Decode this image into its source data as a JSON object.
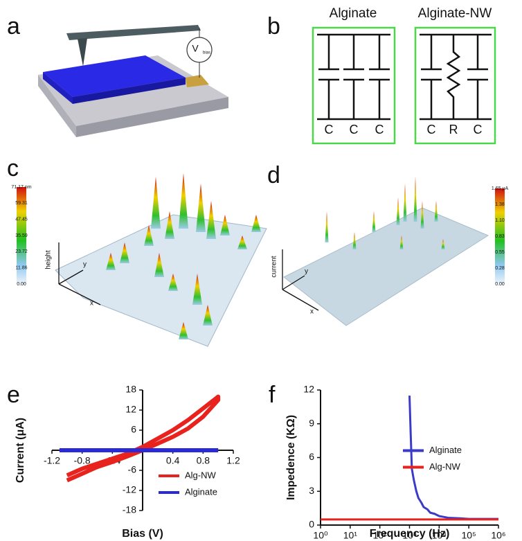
{
  "panel_labels": [
    "a",
    "b",
    "c",
    "d",
    "e",
    "f"
  ],
  "a": {
    "source_label": "V",
    "source_subscript": "bias"
  },
  "b": {
    "circuits": [
      {
        "title": "Alginate",
        "elements": [
          "C",
          "C",
          "C"
        ]
      },
      {
        "title": "Alginate-NW",
        "elements": [
          "C",
          "R",
          "C"
        ]
      }
    ]
  },
  "c": {
    "colorbar_ticks": [
      "71.17 nm",
      "59.31",
      "47.45",
      "35.59",
      "23.72",
      "11.86",
      "0.00"
    ],
    "axis_labels": [
      "height",
      "y",
      "x"
    ]
  },
  "d": {
    "colorbar_ticks": [
      "1.65 μA",
      "1.38",
      "1.10",
      "0.83",
      "0.55",
      "0.28",
      "0.00"
    ],
    "axis_labels": [
      "current",
      "y",
      "x"
    ]
  },
  "chart_data": [
    {
      "type": "line",
      "x_label": "Bias (V)",
      "y_label": "Current (μA)",
      "xlim": [
        -1.2,
        1.2
      ],
      "ylim": [
        -18,
        18
      ],
      "xticks": [
        -1.2,
        -0.8,
        -0.4,
        0.4,
        0.8,
        1.2
      ],
      "yticks": [
        18,
        12,
        6,
        -6,
        -12,
        -18
      ],
      "legend": "lower right",
      "series": [
        {
          "name": "Alg-NW",
          "color": "#e8221c",
          "x": [
            -1,
            -0.8,
            -0.6,
            -0.4,
            -0.2,
            0,
            0.2,
            0.4,
            0.6,
            0.8,
            1,
            1,
            0.8,
            0.6,
            0.4,
            0.2,
            0,
            -0.2,
            -0.4,
            -0.6,
            -0.8,
            -1
          ],
          "values": [
            -9,
            -7,
            -5,
            -3.5,
            -1.8,
            0,
            2,
            4,
            6.5,
            10,
            15,
            16,
            12.5,
            9,
            6,
            3.5,
            1,
            -1,
            -2.5,
            -4,
            -5.5,
            -7.5
          ]
        },
        {
          "name": "Alginate",
          "color": "#2a2ad8",
          "x": [
            -1.1,
            1.0
          ],
          "values": [
            0,
            0
          ]
        }
      ]
    },
    {
      "type": "line",
      "x_label": "Frequency (Hz)",
      "y_label": "Impedence (KΩ)",
      "xlog": true,
      "xlim": [
        1,
        1000000
      ],
      "ylim": [
        0,
        12
      ],
      "xticks": [
        {
          "value": 1,
          "label": "10⁰"
        },
        {
          "value": 10,
          "label": "10¹"
        },
        {
          "value": 100,
          "label": "10²"
        },
        {
          "value": 1000,
          "label": "10³"
        },
        {
          "value": 10000,
          "label": "10⁴"
        },
        {
          "value": 100000,
          "label": "10⁵"
        },
        {
          "value": 1000000,
          "label": "10⁶"
        }
      ],
      "yticks": [
        0,
        3,
        6,
        9,
        12
      ],
      "legend": "center right",
      "series": [
        {
          "name": "Alginate",
          "color": "#3b3bc8",
          "x": [
            1000,
            1100,
            1200,
            1400,
            1700,
            2000,
            2500,
            3000,
            4000,
            5000,
            7000,
            10000,
            20000,
            50000,
            100000,
            1000000
          ],
          "values": [
            11.5,
            8,
            5,
            4,
            3,
            2.4,
            2,
            1.6,
            1.4,
            1.1,
            1,
            0.8,
            0.65,
            0.6,
            0.55,
            0.55
          ]
        },
        {
          "name": "Alg-NW",
          "color": "#e8221c",
          "x": [
            1,
            1000000
          ],
          "values": [
            0.5,
            0.5
          ]
        }
      ]
    }
  ]
}
